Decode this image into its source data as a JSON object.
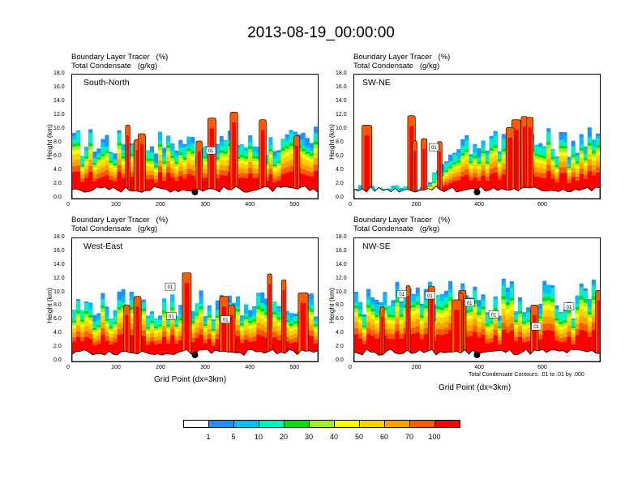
{
  "title": "2013-08-19_00:00:00",
  "subtitle_line1": "Boundary Layer Tracer   (%)",
  "subtitle_line2": "Total Condensate   (g/kg)",
  "ylabel": "Height (km)",
  "xlabel": "Grid Point (dx=3km)",
  "contour_note": "Total Condensate Contours: .01 to .01 by .000",
  "yticks": [
    "18.0",
    "16.0",
    "14.0",
    "12.0",
    "10.0",
    "8.0",
    "6.0",
    "4.0",
    "2.0",
    "0.0"
  ],
  "colorbar": {
    "colors": [
      "#ffffff",
      "#1e90ff",
      "#00bfff",
      "#00f0c0",
      "#00e000",
      "#9ef02a",
      "#ffff00",
      "#ffd000",
      "#ffa000",
      "#ff5a00",
      "#ff0000"
    ],
    "labels": [
      "1",
      "5",
      "10",
      "20",
      "30",
      "40",
      "50",
      "60",
      "70",
      "100"
    ]
  },
  "chart_data": [
    {
      "type": "heatmap",
      "name": "South-North",
      "xticks": [
        "0",
        "100",
        "200",
        "300",
        "400",
        "500"
      ],
      "xlim": [
        0,
        550
      ],
      "ylim": [
        0,
        18
      ],
      "marker_x": 275,
      "contour_labels": [
        "01"
      ]
    },
    {
      "type": "heatmap",
      "name": "SW-NE",
      "xticks": [
        "0",
        "200",
        "400",
        "600"
      ],
      "xlim": [
        0,
        780
      ],
      "ylim": [
        0,
        18
      ],
      "marker_x": 390,
      "contour_labels": [
        "01"
      ]
    },
    {
      "type": "heatmap",
      "name": "West-East",
      "xticks": [
        "0",
        "100",
        "200",
        "300",
        "400",
        "500"
      ],
      "xlim": [
        0,
        550
      ],
      "ylim": [
        0,
        18
      ],
      "marker_x": 275,
      "contour_labels": [
        "01",
        "01",
        "01"
      ]
    },
    {
      "type": "heatmap",
      "name": "NW-SE",
      "xticks": [
        "0",
        "200",
        "400",
        "600"
      ],
      "xlim": [
        0,
        780
      ],
      "ylim": [
        0,
        18
      ],
      "marker_x": 390,
      "contour_labels": [
        "01",
        "01",
        "01",
        "01",
        "01",
        "01"
      ]
    }
  ]
}
